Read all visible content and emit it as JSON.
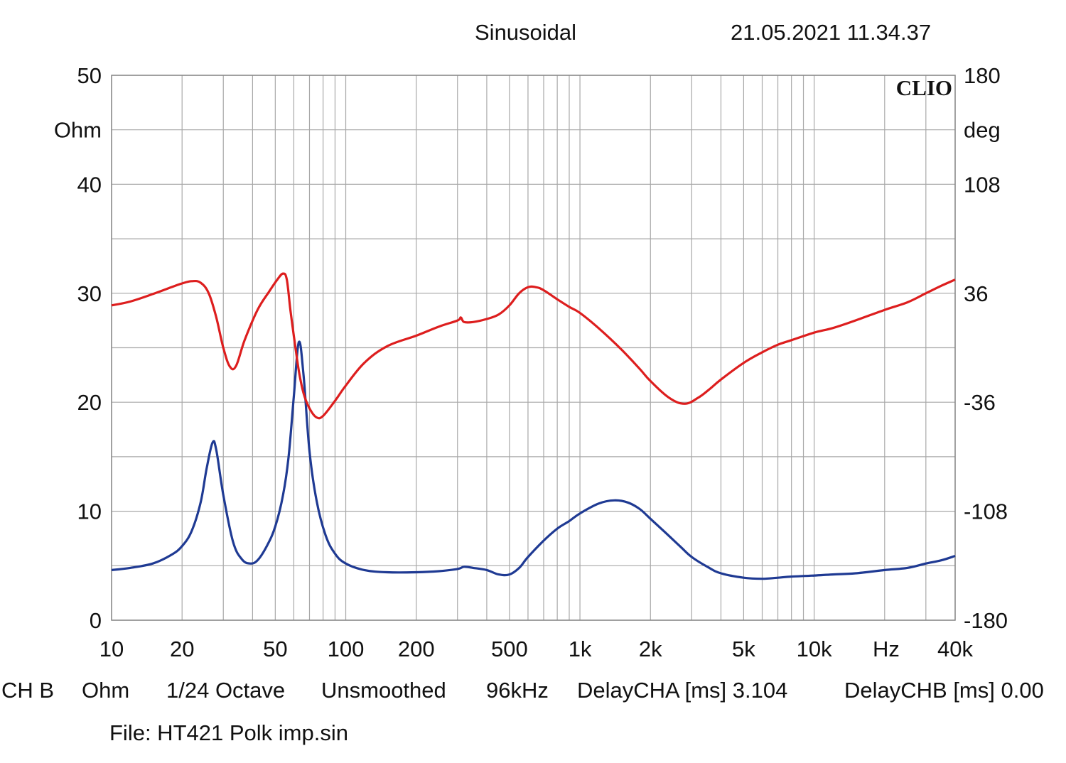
{
  "header": {
    "mode": "Sinusoidal",
    "timestamp": "21.05.2021 11.34.37"
  },
  "brand": "CLIO",
  "footer": {
    "items": [
      "CH B",
      "Ohm",
      "1/24 Octave",
      "Unsmoothed",
      "96kHz",
      "DelayCHA [ms] 3.104",
      "DelayCHB [ms] 0.00"
    ],
    "file": "File: HT421 Polk imp.sin"
  },
  "chart_data": {
    "type": "line",
    "x_scale": "log",
    "xlim": [
      10,
      40000
    ],
    "ylim": [
      0,
      50
    ],
    "y2lim": [
      -180,
      180
    ],
    "grid": true,
    "xlabel": "Hz",
    "ylabel": "Ohm",
    "y2label": "deg",
    "x_ticks": [
      {
        "value": 10,
        "label": "10"
      },
      {
        "value": 20,
        "label": "20"
      },
      {
        "value": 50,
        "label": "50"
      },
      {
        "value": 100,
        "label": "100"
      },
      {
        "value": 200,
        "label": "200"
      },
      {
        "value": 500,
        "label": "500"
      },
      {
        "value": 1000,
        "label": "1k"
      },
      {
        "value": 2000,
        "label": "2k"
      },
      {
        "value": 5000,
        "label": "5k"
      },
      {
        "value": 10000,
        "label": "10k"
      },
      {
        "value": 40000,
        "label": "40k"
      }
    ],
    "y_ticks": [
      {
        "value": 0,
        "label": "0"
      },
      {
        "value": 10,
        "label": "10"
      },
      {
        "value": 20,
        "label": "20"
      },
      {
        "value": 30,
        "label": "30"
      },
      {
        "value": 40,
        "label": "40"
      },
      {
        "value": 50,
        "label": "50"
      }
    ],
    "y2_ticks": [
      {
        "value": -180,
        "label": "-180"
      },
      {
        "value": -108,
        "label": "-108"
      },
      {
        "value": -36,
        "label": "-36"
      },
      {
        "value": 36,
        "label": "36"
      },
      {
        "value": 108,
        "label": "108"
      },
      {
        "value": 180,
        "label": "180"
      }
    ],
    "series": [
      {
        "color": "#1f3a93",
        "axis": "left",
        "points": [
          [
            10,
            4.6
          ],
          [
            12,
            4.8
          ],
          [
            15,
            5.2
          ],
          [
            18,
            6.0
          ],
          [
            20,
            6.8
          ],
          [
            22,
            8.2
          ],
          [
            24,
            10.8
          ],
          [
            25.5,
            14.0
          ],
          [
            27,
            16.3
          ],
          [
            28,
            15.6
          ],
          [
            30,
            11.5
          ],
          [
            33,
            7.2
          ],
          [
            36,
            5.6
          ],
          [
            39,
            5.2
          ],
          [
            42,
            5.5
          ],
          [
            46,
            6.8
          ],
          [
            50,
            8.6
          ],
          [
            54,
            11.5
          ],
          [
            57,
            15.0
          ],
          [
            60,
            20.5
          ],
          [
            63,
            25.5
          ],
          [
            66,
            22.5
          ],
          [
            70,
            15.5
          ],
          [
            75,
            11.0
          ],
          [
            82,
            7.8
          ],
          [
            90,
            6.1
          ],
          [
            100,
            5.2
          ],
          [
            120,
            4.6
          ],
          [
            150,
            4.4
          ],
          [
            200,
            4.4
          ],
          [
            250,
            4.5
          ],
          [
            300,
            4.7
          ],
          [
            320,
            4.9
          ],
          [
            350,
            4.8
          ],
          [
            400,
            4.6
          ],
          [
            450,
            4.2
          ],
          [
            500,
            4.2
          ],
          [
            550,
            4.8
          ],
          [
            600,
            5.8
          ],
          [
            700,
            7.3
          ],
          [
            800,
            8.4
          ],
          [
            900,
            9.1
          ],
          [
            1000,
            9.8
          ],
          [
            1200,
            10.7
          ],
          [
            1400,
            11.0
          ],
          [
            1600,
            10.8
          ],
          [
            1800,
            10.2
          ],
          [
            2000,
            9.3
          ],
          [
            2300,
            8.1
          ],
          [
            2700,
            6.7
          ],
          [
            3000,
            5.8
          ],
          [
            3500,
            4.9
          ],
          [
            4000,
            4.3
          ],
          [
            5000,
            3.9
          ],
          [
            6000,
            3.8
          ],
          [
            7000,
            3.9
          ],
          [
            8000,
            4.0
          ],
          [
            10000,
            4.1
          ],
          [
            12000,
            4.2
          ],
          [
            15000,
            4.3
          ],
          [
            20000,
            4.6
          ],
          [
            25000,
            4.8
          ],
          [
            30000,
            5.2
          ],
          [
            35000,
            5.5
          ],
          [
            40000,
            5.9
          ]
        ]
      },
      {
        "color": "#dd1e1e",
        "axis": "right",
        "points": [
          [
            10,
            28
          ],
          [
            12,
            30.5
          ],
          [
            15,
            35.5
          ],
          [
            18,
            40
          ],
          [
            20,
            42.5
          ],
          [
            22,
            44
          ],
          [
            24,
            43
          ],
          [
            26,
            36
          ],
          [
            28,
            20
          ],
          [
            30,
            0
          ],
          [
            32,
            -12.5
          ],
          [
            34,
            -12
          ],
          [
            37,
            5
          ],
          [
            42,
            25
          ],
          [
            47,
            37
          ],
          [
            51,
            45
          ],
          [
            54,
            49
          ],
          [
            56,
            45
          ],
          [
            58,
            25
          ],
          [
            60,
            8
          ],
          [
            63,
            -15
          ],
          [
            66,
            -30
          ],
          [
            70,
            -40
          ],
          [
            75,
            -46
          ],
          [
            80,
            -45
          ],
          [
            90,
            -35
          ],
          [
            100,
            -25
          ],
          [
            120,
            -10
          ],
          [
            150,
            1
          ],
          [
            200,
            8
          ],
          [
            250,
            14
          ],
          [
            300,
            18
          ],
          [
            310,
            20
          ],
          [
            320,
            17
          ],
          [
            350,
            17
          ],
          [
            400,
            19
          ],
          [
            450,
            22
          ],
          [
            500,
            28
          ],
          [
            550,
            36
          ],
          [
            600,
            40
          ],
          [
            650,
            40
          ],
          [
            700,
            38
          ],
          [
            800,
            32
          ],
          [
            900,
            27
          ],
          [
            1000,
            23
          ],
          [
            1200,
            13
          ],
          [
            1500,
            -1
          ],
          [
            1800,
            -14
          ],
          [
            2000,
            -22
          ],
          [
            2400,
            -33
          ],
          [
            2800,
            -37
          ],
          [
            3200,
            -33
          ],
          [
            3600,
            -27
          ],
          [
            4000,
            -21
          ],
          [
            5000,
            -10
          ],
          [
            6000,
            -3
          ],
          [
            7000,
            2
          ],
          [
            8000,
            5
          ],
          [
            10000,
            10
          ],
          [
            12000,
            13
          ],
          [
            15000,
            18
          ],
          [
            20000,
            25
          ],
          [
            25000,
            30
          ],
          [
            30000,
            36
          ],
          [
            35000,
            41
          ],
          [
            40000,
            45
          ]
        ]
      }
    ]
  }
}
